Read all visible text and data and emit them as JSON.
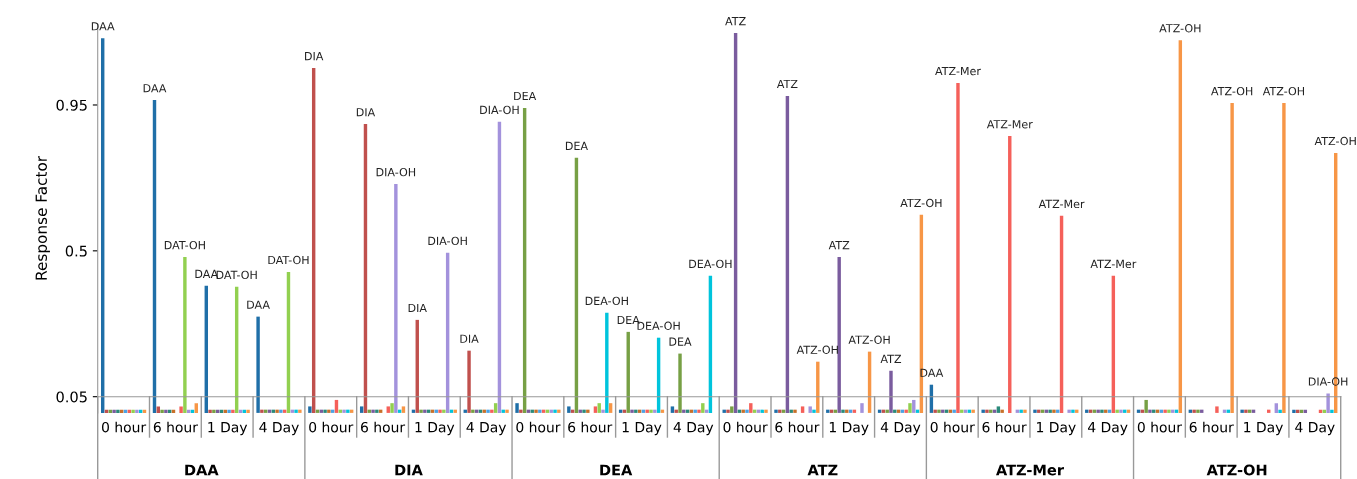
{
  "chart_data": {
    "type": "bar",
    "ylabel": "Response Factor",
    "categories": [
      "0 hour",
      "6 hour",
      "1 Day",
      "4 Day",
      "0 hour",
      "6 hour",
      "1 Day",
      "4 Day",
      "0 hour",
      "6 hour",
      "1 Day",
      "4 Day",
      "0 hour",
      "6 hour",
      "1 Day",
      "4 Day",
      "0 hour",
      "6 hour",
      "1 Day",
      "4 Day",
      "0 hour",
      "6 hour",
      "1 Day",
      "4 Day"
    ],
    "annotations": [
      "DAA",
      "DIA",
      "DEA",
      "ATZ",
      "ATZ-Mer",
      "ATZ-OH"
    ],
    "ylim": [
      0,
      1.2
    ],
    "yticks": [
      0.05,
      0.5,
      0.95
    ],
    "grid": false,
    "legend": false,
    "series": [
      {
        "color": "#1f6fa8",
        "values": [
          1.156,
          0.965,
          0.392,
          0.297,
          0.02,
          0.02,
          0.01,
          0.01,
          0.03,
          0.02,
          0.01,
          0.02,
          0.01,
          0.01,
          0.01,
          0.01,
          0.087,
          0.01,
          0.01,
          0.01,
          0.01,
          0.01,
          0.01,
          0.01
        ],
        "value_labels": [
          "DAA",
          "DAA",
          "DAA",
          "DAA",
          null,
          null,
          null,
          null,
          null,
          null,
          null,
          null,
          null,
          null,
          null,
          null,
          "DAA",
          null,
          null,
          null,
          null,
          null,
          null,
          null
        ]
      },
      {
        "color": "#c0504d",
        "values": [
          0.01,
          0.02,
          0.01,
          0.01,
          1.064,
          0.891,
          0.287,
          0.192,
          0.01,
          0.01,
          0.01,
          0.01,
          0.01,
          0.01,
          0.01,
          0.01,
          0.01,
          0.01,
          0.01,
          0.01,
          0.01,
          0.01,
          0.01,
          0.01
        ],
        "value_labels": [
          null,
          null,
          null,
          null,
          "DIA",
          "DIA",
          "DIA",
          "DIA",
          null,
          null,
          null,
          null,
          null,
          null,
          null,
          null,
          null,
          null,
          null,
          null,
          null,
          null,
          null,
          null
        ]
      },
      {
        "color": "#77a045",
        "values": [
          0.01,
          0.01,
          0.01,
          0.01,
          0.01,
          0.01,
          0.01,
          0.01,
          0.941,
          0.787,
          0.25,
          0.183,
          0.02,
          0.01,
          0.01,
          0.01,
          0.01,
          0.01,
          0.01,
          0.01,
          0.04,
          0.01,
          0.01,
          0.01
        ],
        "value_labels": [
          null,
          null,
          null,
          null,
          null,
          null,
          null,
          null,
          "DEA",
          "DEA",
          "DEA",
          "DEA",
          null,
          null,
          null,
          null,
          null,
          null,
          null,
          null,
          null,
          null,
          null,
          null
        ]
      },
      {
        "color": "#7a5c9e",
        "values": [
          0.01,
          0.01,
          0.01,
          0.01,
          0.01,
          0.01,
          0.01,
          0.01,
          0.01,
          0.01,
          0.01,
          0.01,
          1.172,
          0.978,
          0.481,
          0.13,
          0.01,
          0.01,
          0.01,
          0.01,
          0.01,
          0.01,
          0.01,
          0.01
        ],
        "value_labels": [
          null,
          null,
          null,
          null,
          null,
          null,
          null,
          null,
          null,
          null,
          null,
          null,
          "ATZ",
          "ATZ",
          "ATZ",
          "ATZ",
          null,
          null,
          null,
          null,
          null,
          null,
          null,
          null
        ]
      },
      {
        "color": "#2a8a7a",
        "values": [
          0.01,
          0.01,
          0.01,
          0.01,
          0.01,
          0.01,
          0.01,
          0.01,
          0.01,
          0.01,
          0.01,
          0.01,
          0.01,
          0.01,
          0.01,
          0.01,
          0.01,
          0.02,
          0.01,
          0.01,
          0.01,
          null,
          null,
          null
        ]
      },
      {
        "color": "#c8702a",
        "values": [
          0.01,
          0.01,
          0.01,
          0.01,
          0.01,
          0.01,
          0.01,
          0.01,
          0.01,
          0.01,
          0.01,
          0.01,
          0.01,
          0.01,
          0.01,
          0.01,
          0.01,
          0.01,
          0.01,
          0.01,
          0.01,
          null,
          null,
          null
        ]
      },
      {
        "color": "#4aa3e6",
        "values": [
          0.01,
          0.0,
          0.01,
          0.01,
          0.01,
          0.0,
          0.01,
          0.01,
          0.01,
          0.0,
          0.01,
          0.01,
          0.01,
          0.0,
          0.01,
          0.01,
          0.01,
          0.0,
          0.01,
          0.01,
          0.01,
          null,
          null,
          null
        ]
      },
      {
        "color": "#f5605a",
        "values": [
          0.01,
          0.02,
          0.01,
          0.01,
          0.04,
          0.02,
          0.01,
          0.01,
          0.01,
          0.02,
          0.01,
          0.01,
          0.03,
          0.02,
          0.01,
          0.01,
          1.018,
          0.854,
          0.608,
          0.423,
          0.01,
          0.02,
          0.01,
          0.01
        ],
        "value_labels": [
          null,
          null,
          null,
          null,
          null,
          null,
          null,
          null,
          null,
          null,
          null,
          null,
          null,
          null,
          null,
          null,
          "ATZ-Mer",
          "ATZ-Mer",
          "ATZ-Mer",
          "ATZ-Mer",
          null,
          null,
          null,
          null
        ]
      },
      {
        "color": "#92d050",
        "values": [
          0.01,
          0.481,
          0.389,
          0.435,
          0.01,
          0.03,
          0.01,
          0.03,
          0.01,
          0.03,
          0.01,
          0.03,
          0.01,
          0.0,
          0.0,
          0.03,
          0.01,
          0.0,
          0.0,
          0.01,
          0.01,
          0.0,
          0.0,
          0.01
        ],
        "value_labels": [
          null,
          "DAT-OH",
          "DAT-OH",
          "DAT-OH",
          null,
          null,
          null,
          null,
          null,
          null,
          null,
          null,
          null,
          null,
          null,
          null,
          null,
          null,
          null,
          null,
          null,
          null,
          null,
          null
        ]
      },
      {
        "color": "#a392dc",
        "values": [
          0.01,
          0.01,
          0.01,
          0.01,
          0.01,
          0.706,
          0.494,
          0.898,
          0.01,
          0.01,
          0.01,
          0.01,
          0.01,
          0.02,
          0.03,
          0.04,
          0.01,
          0.01,
          0.01,
          0.01,
          0.01,
          0.01,
          0.03,
          0.06
        ],
        "value_labels": [
          null,
          null,
          null,
          null,
          null,
          "DIA-OH",
          "DIA-OH",
          "DIA-OH",
          null,
          null,
          null,
          null,
          null,
          null,
          null,
          null,
          null,
          null,
          null,
          null,
          null,
          null,
          null,
          "DIA-OH"
        ]
      },
      {
        "color": "#00c4dc",
        "values": [
          0.01,
          0.01,
          0.01,
          0.01,
          0.01,
          0.01,
          0.01,
          0.01,
          0.01,
          0.309,
          0.232,
          0.423,
          0.01,
          0.01,
          0.0,
          0.01,
          0.01,
          0.01,
          0.01,
          0.01,
          0.01,
          0.01,
          0.01,
          0.01
        ],
        "value_labels": [
          null,
          null,
          null,
          null,
          null,
          null,
          null,
          null,
          null,
          "DEA-OH",
          "DEA-OH",
          "DEA-OH",
          null,
          null,
          null,
          null,
          null,
          null,
          null,
          null,
          null,
          null,
          null,
          null
        ]
      },
      {
        "color": "#f79646",
        "values": [
          0.01,
          0.03,
          0.01,
          0.01,
          0.01,
          0.02,
          0.01,
          0.01,
          0.01,
          0.03,
          0.01,
          0.0,
          0.01,
          0.158,
          0.189,
          0.611,
          0.01,
          0.01,
          0.01,
          0.01,
          1.15,
          0.956,
          0.956,
          0.802
        ],
        "value_labels": [
          null,
          null,
          null,
          null,
          null,
          null,
          null,
          null,
          null,
          null,
          null,
          null,
          null,
          "ATZ-OH",
          "ATZ-OH",
          "ATZ-OH",
          null,
          null,
          null,
          null,
          "ATZ-OH",
          "ATZ-OH",
          "ATZ-OH",
          "ATZ-OH"
        ]
      }
    ]
  }
}
